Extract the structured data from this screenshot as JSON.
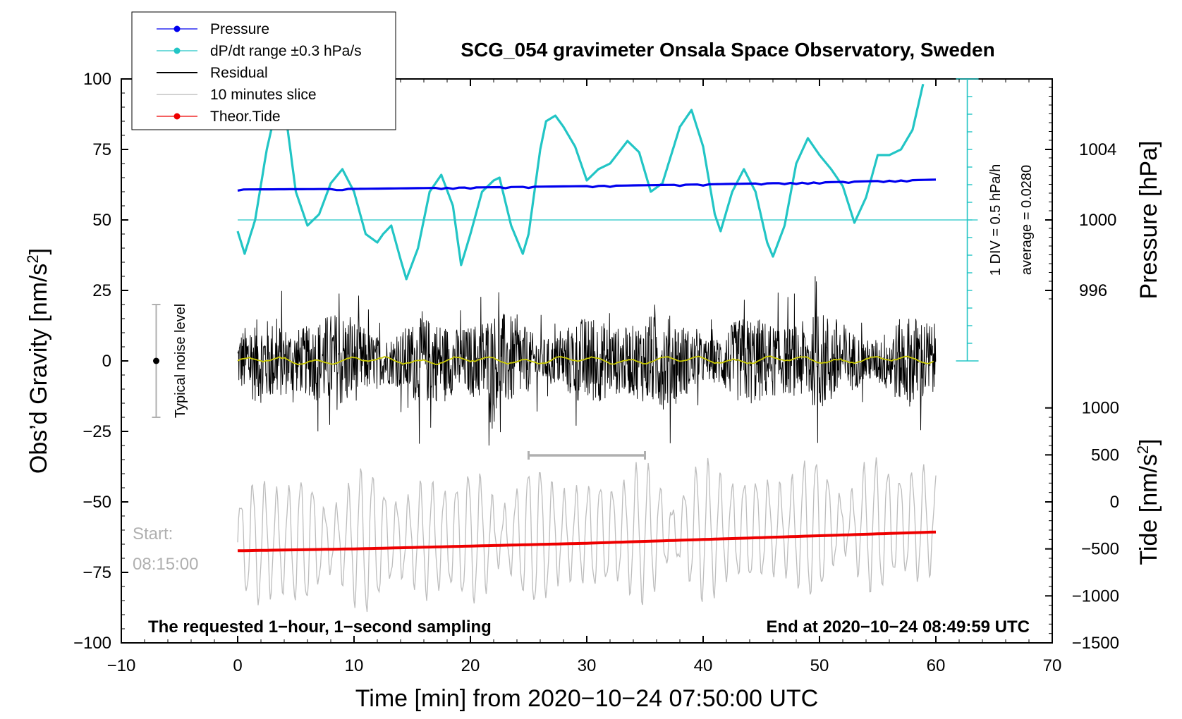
{
  "chart_data": {
    "type": "line",
    "title": "SCG_054 gravimeter Onsala Space Observatory, Sweden",
    "xlabel": "Time [min] from 2020−10−24 07:50:00 UTC",
    "ylabel_left_main": "Obs’d Gravity [nm/s",
    "ylabel_left_sup": "2",
    "ylabel_left_close": "]",
    "ylabel_right_pressure": "Pressure [hPa]",
    "ylabel_right_tide_main": "Tide [nm/s",
    "ylabel_right_tide_sup": "2",
    "ylabel_right_tide_close": "]",
    "xlim": [
      -10,
      70
    ],
    "ylim_left": [
      -100,
      100
    ],
    "x_ticks": [
      -10,
      0,
      10,
      20,
      30,
      40,
      50,
      60,
      70
    ],
    "x_tick_labels": [
      "−10",
      "0",
      "10",
      "20",
      "30",
      "40",
      "50",
      "60",
      "70"
    ],
    "y_left_ticks": [
      100,
      75,
      50,
      25,
      0,
      -25,
      -50,
      -75,
      -100
    ],
    "y_left_tick_labels": [
      "100",
      "75",
      "50",
      "25",
      "0",
      "−25",
      "−50",
      "−75",
      "−100"
    ],
    "pressure_ticks": [
      {
        "label": "1004",
        "left_value": 75
      },
      {
        "label": "1000",
        "left_value": 50
      },
      {
        "label": "996",
        "left_value": 25
      }
    ],
    "tide_ticks": [
      {
        "label": "1000",
        "left_value": -16.67
      },
      {
        "label": "500",
        "left_value": -33.33
      },
      {
        "label": "0",
        "left_value": -50
      },
      {
        "label": "−500",
        "left_value": -66.67
      },
      {
        "label": "−1000",
        "left_value": -83.33
      },
      {
        "label": "−1500",
        "left_value": -100
      }
    ],
    "legend": [
      {
        "label": "Pressure",
        "color": "#0000ee",
        "marker": true
      },
      {
        "label": "dP/dt range ±0.3 hPa/s",
        "color": "#22c5c5",
        "marker": true
      },
      {
        "label": "Residual",
        "color": "#000000",
        "marker": false
      },
      {
        "label": "10 minutes slice",
        "color": "#b8b8b8",
        "marker": false
      },
      {
        "label": "Theor.Tide",
        "color": "#ee0000",
        "marker": true
      }
    ],
    "series": [
      {
        "name": "Pressure",
        "axis": "left-equivalent",
        "color": "#0000ee",
        "x": [
          0,
          10,
          20,
          30,
          40,
          50,
          60
        ],
        "values": [
          60.8,
          61.0,
          61.5,
          62.0,
          62.6,
          63.3,
          64.3
        ]
      },
      {
        "name": "dP/dt range ±0.3 hPa/s",
        "axis": "left-equivalent",
        "color": "#22c5c5",
        "x": [
          0,
          0.6,
          1.5,
          2.5,
          3.5,
          4.2,
          5.0,
          6.0,
          7.0,
          8.0,
          9.0,
          10.0,
          11.0,
          12.0,
          12.5,
          13.2,
          14.0,
          14.5,
          15.5,
          16.5,
          17.5,
          18.5,
          19.2,
          20.0,
          21.0,
          22.0,
          22.5,
          23.5,
          24.5,
          25.0,
          26.0,
          26.5,
          27.3,
          28.0,
          29.0,
          30.0,
          31.0,
          32.0,
          33.5,
          34.5,
          35.5,
          36.5,
          38.0,
          39.0,
          40.0,
          41.0,
          41.5,
          42.5,
          43.5,
          44.5,
          45.5,
          46.0,
          47.0,
          48.0,
          49.0,
          50.0,
          51.0,
          52.0,
          53.0,
          54.0,
          55.0,
          56.0,
          57.0,
          58.0,
          59.0
        ],
        "values": [
          46,
          38,
          50,
          75,
          93,
          85,
          60,
          48,
          52,
          63,
          68,
          60,
          45,
          42,
          45,
          48,
          36,
          29,
          40,
          60,
          66,
          55,
          34,
          45,
          60,
          64,
          65,
          48,
          38,
          45,
          75,
          85,
          87,
          83,
          76,
          64,
          68,
          70,
          78,
          74,
          60,
          63,
          83,
          89,
          76,
          52,
          46,
          60,
          68,
          60,
          42,
          37,
          48,
          70,
          79,
          73,
          68,
          62,
          49,
          58,
          73,
          73,
          75,
          82,
          100
        ]
      },
      {
        "name": "Theor.Tide",
        "axis": "tide",
        "color": "#ee0000",
        "x": [
          0,
          10,
          20,
          30,
          40,
          50,
          60
        ],
        "values": [
          -520,
          -500,
          -470,
          -440,
          -400,
          -360,
          -320
        ]
      }
    ],
    "residual_noise_band": [
      -30,
      38
    ],
    "dpdt_reference_left_value": 50,
    "scale_bar_note": "1 DIV = 0.5 hPa/h",
    "average_note": "average = 0.0280",
    "noise_label": "Typical noise level",
    "noise_range": [
      -20,
      20
    ],
    "slice_range_min": [
      25,
      35
    ],
    "start_label_line1": "Start:",
    "start_label_line2": "08:15:00",
    "footer_left": "The requested 1−hour, 1−second sampling",
    "footer_right": "End at 2020−10−24 08:49:59 UTC"
  }
}
